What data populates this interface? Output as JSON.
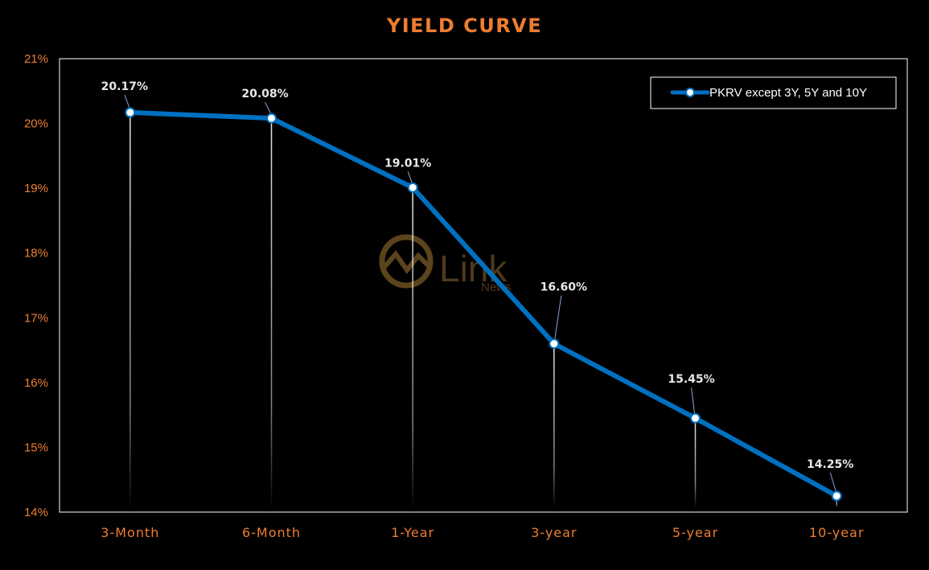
{
  "chart_data": {
    "type": "line",
    "title": "YIELD CURVE",
    "categories": [
      "3-Month",
      "6-Month",
      "1-Year",
      "3-year",
      "5-year",
      "10-year"
    ],
    "series": [
      {
        "name": "PKRV except 3Y, 5Y and 10Y",
        "values": [
          20.17,
          20.08,
          19.01,
          16.6,
          15.45,
          14.25
        ],
        "labels": [
          "20.17%",
          "20.08%",
          "19.01%",
          "16.60%",
          "15.45%",
          "14.25%"
        ]
      }
    ],
    "yticks": [
      "14%",
      "15%",
      "16%",
      "17%",
      "18%",
      "19%",
      "20%",
      "21%"
    ],
    "ylim": [
      14,
      21
    ],
    "grid": false,
    "drop_lines": true,
    "legend_position": "top-right",
    "colors": {
      "series": "#0070c0",
      "text_accent": "#ed7d31",
      "background": "#000000"
    }
  },
  "watermark": {
    "brand": "Link",
    "sub": "News",
    "color": "#7a5a2a"
  }
}
